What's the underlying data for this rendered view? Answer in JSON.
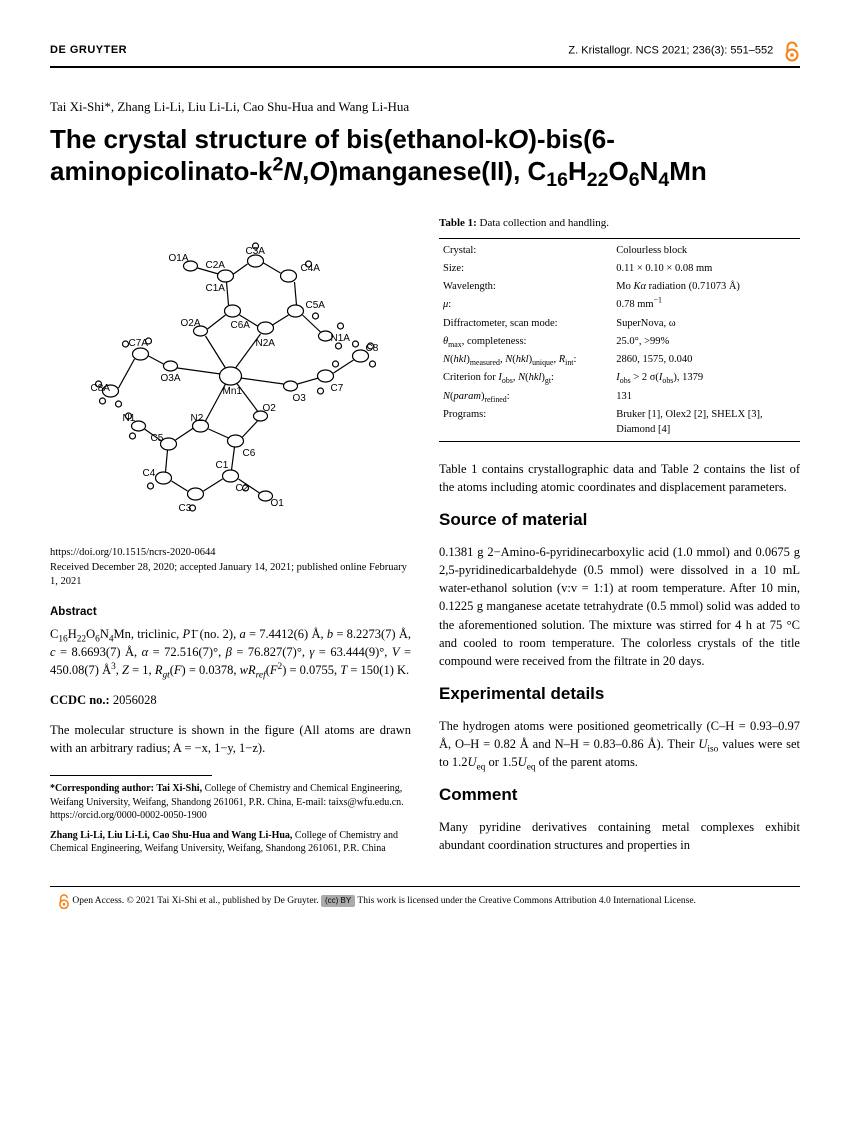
{
  "header": {
    "publisher": "DE GRUYTER",
    "journal": "Z. Kristallogr. NCS 2021; 236(3): 551–552"
  },
  "authors": "Tai Xi-Shi*, Zhang Li-Li, Liu Li-Li, Cao Shu-Hua and Wang Li-Hua",
  "title_html": "The crystal structure of bis(ethanol-k<i>O</i>)-bis(6-aminopicolinato-k<sup>2</sup><i>N</i>,<i>O</i>)manganese(II), C<sub>16</sub>H<sub>22</sub>O<sub>6</sub>N<sub>4</sub>Mn",
  "figure": {
    "atom_labels": [
      "C3A",
      "C2A",
      "O1A",
      "C1A",
      "C4A",
      "C5A",
      "O2A",
      "C6A",
      "N2A",
      "N1A",
      "C7A",
      "O3A",
      "Mn1",
      "C8",
      "C8A",
      "N1",
      "N2",
      "O2",
      "O3",
      "C7",
      "C6",
      "C5",
      "C4",
      "C3",
      "C2",
      "C1",
      "O1"
    ]
  },
  "doi": {
    "url": "https://doi.org/10.1515/ncrs-2020-0644",
    "dates": "Received December 28, 2020; accepted January 14, 2021; published online February 1, 2021"
  },
  "abstract": {
    "heading": "Abstract",
    "text_html": "C<sub>16</sub>H<sub>22</sub>O<sub>6</sub>N<sub>4</sub>Mn, triclinic, <i>P</i>1̄ (no. 2), <i>a</i> = 7.4412(6) Å, <i>b</i> = 8.2273(7) Å, <i>c</i> = 8.6693(7) Å, <i>α</i> = 72.516(7)°, <i>β</i> = 76.827(7)°, <i>γ</i> = 63.444(9)°, <i>V</i> = 450.08(7) Å<sup>3</sup>, <i>Z</i> = 1, <i>R<sub>gt</sub></i>(<i>F</i>) = 0.0378, <i>wR<sub>ref</sub></i>(<i>F</i><sup>2</sup>) = 0.0755, <i>T</i> = 150(1) K."
  },
  "ccdc": {
    "label": "CCDC no.:",
    "value": "2056028"
  },
  "mol_struct_text": "The molecular structure is shown in the figure (All atoms are drawn with an arbitrary radius; A = −x, 1−y, 1−z).",
  "footnotes": {
    "corresponding_html": "<b>*Corresponding author: Tai Xi-Shi,</b> College of Chemistry and Chemical Engineering, Weifang University, Weifang, Shandong 261061, P.R. China, E-mail: taixs@wfu.edu.cn. https://orcid.org/0000-0002-0050-1900",
    "others_html": "<b>Zhang Li-Li, Liu Li-Li, Cao Shu-Hua and Wang Li-Hua,</b> College of Chemistry and Chemical Engineering, Weifang University, Weifang, Shandong 261061, P.R. China"
  },
  "table1": {
    "caption_html": "<b>Table 1:</b> Data collection and handling.",
    "rows": [
      {
        "k": "Crystal:",
        "v": "Colourless block"
      },
      {
        "k": "Size:",
        "v": "0.11 × 0.10 × 0.08 mm"
      },
      {
        "k": "Wavelength:",
        "v_html": "Mo <i>Kα</i> radiation (0.71073 Å)"
      },
      {
        "k_html": "<i>μ</i>:",
        "v_html": "0.78 mm<sup>−1</sup>"
      },
      {
        "k": "Diffractometer, scan mode:",
        "v": "SuperNova, ω"
      },
      {
        "k_html": "<i>θ</i><sub>max</sub>, completeness:",
        "v": "25.0°, >99%"
      },
      {
        "k_html": "<i>N</i>(<i>hkl</i>)<sub>measured</sub>, <i>N</i>(<i>hkl</i>)<sub>unique</sub>, <i>R</i><sub>int</sub>:",
        "v": "2860, 1575, 0.040"
      },
      {
        "k_html": "Criterion for <i>I</i><sub>obs</sub>, <i>N</i>(<i>hkl</i>)<sub>gt</sub>:",
        "v_html": "<i>I</i><sub>obs</sub> > 2 σ(<i>I</i><sub>obs</sub>), 1379"
      },
      {
        "k_html": "<i>N</i>(<i>param</i>)<sub>refined</sub>:",
        "v": "131"
      },
      {
        "k": "Programs:",
        "v": "Bruker [1], Olex2 [2], SHELX [3], Diamond [4]"
      }
    ]
  },
  "right_intro": "Table 1 contains crystallographic data and Table 2 contains the list of the atoms including atomic coordinates and displacement parameters.",
  "source": {
    "heading": "Source of material",
    "text": "0.1381 g 2−Amino-6-pyridinecarboxylic acid (1.0 mmol) and 0.0675 g 2,5-pyridinedicarbaldehyde (0.5 mmol) were dissolved in a 10 mL water-ethanol solution (v:v = 1:1) at room temperature. After 10 min, 0.1225 g manganese acetate tetrahydrate (0.5 mmol) solid was added to the aforementioned solution. The mixture was stirred for 4 h at 75 °C and cooled to room temperature. The colorless crystals of the title compound were received from the filtrate in 20 days."
  },
  "experimental": {
    "heading": "Experimental details",
    "text_html": "The hydrogen atoms were positioned geometrically (C–H = 0.93–0.97 Å, O–H = 0.82 Å and N–H = 0.83–0.86 Å). Their <i>U</i><sub>iso</sub> values were set to 1.2<i>U</i><sub>eq</sub> or 1.5<i>U</i><sub>eq</sub> of the parent atoms."
  },
  "comment": {
    "heading": "Comment",
    "text": "Many pyridine derivatives containing metal complexes exhibit abundant coordination structures and properties in"
  },
  "license": {
    "text_html": "Open Access. © 2021 Tai Xi-Shi et al., published by De Gruyter. <span class=\"cc-badge\">(cc) BY</span> This work is licensed under the Creative Commons Attribution 4.0 International License."
  },
  "colors": {
    "oa_orange": "#f68212",
    "text": "#000000",
    "bg": "#ffffff"
  }
}
